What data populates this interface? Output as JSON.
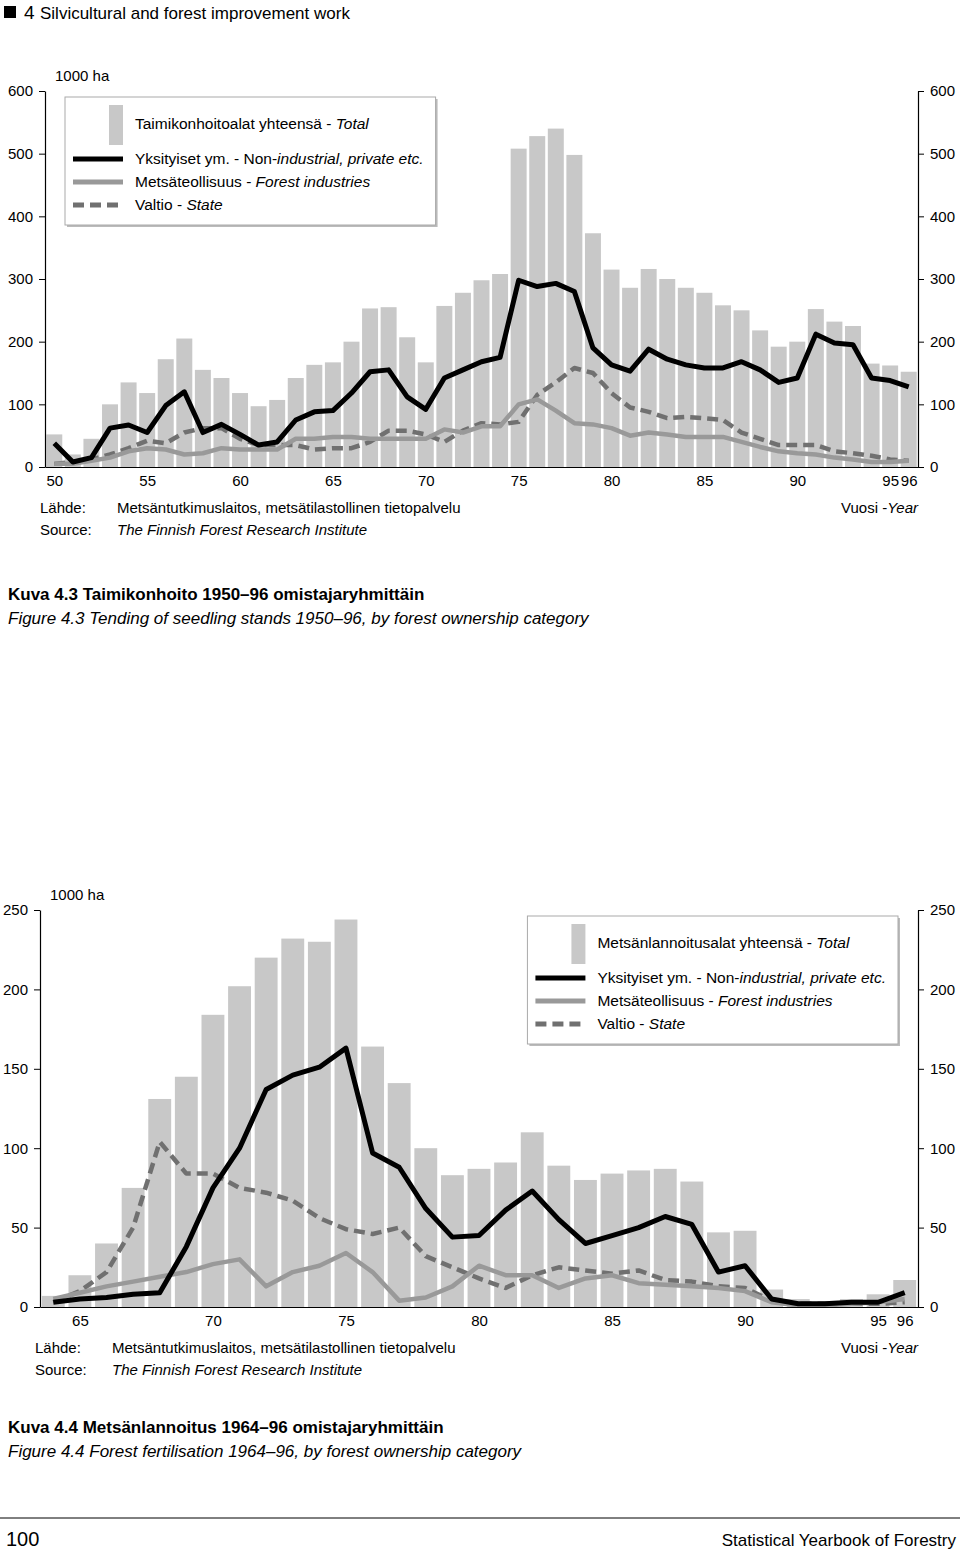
{
  "page": {
    "section_number": "4",
    "header": "Silvicultural and forest improvement work",
    "page_number": 100,
    "footer": "Statistical Yearbook of Forestry"
  },
  "chart_data": [
    {
      "type": "bar",
      "title": "Kuva 4.3 Taimikonhoito 1950–96 omistajaryhmittäin",
      "subtitle": "Figure 4.3 Tending of seedling stands 1950–96, by forest ownership category",
      "y_label": "1000 ha",
      "x_label": "Vuosi -Year",
      "annotations": [
        "Lähde:",
        "Metsäntutkimuslaitos, metsätilastollinen tietopalvelu",
        "Source:",
        "The Finnish Forest Research Institute"
      ],
      "x": [
        50,
        51,
        52,
        53,
        54,
        55,
        56,
        57,
        58,
        59,
        60,
        61,
        62,
        63,
        64,
        65,
        66,
        67,
        68,
        69,
        70,
        71,
        72,
        73,
        74,
        75,
        76,
        77,
        78,
        79,
        80,
        81,
        82,
        83,
        84,
        85,
        86,
        87,
        88,
        89,
        90,
        91,
        92,
        93,
        94,
        95,
        96
      ],
      "series": [
        {
          "name": "Taimikonhoitoalat yhteensä - Total",
          "type": "bar",
          "color": "#c8c8c8",
          "values": [
            52,
            20,
            45,
            100,
            135,
            118,
            172,
            205,
            155,
            142,
            118,
            97,
            107,
            142,
            163,
            167,
            200,
            253,
            255,
            207,
            167,
            257,
            278,
            298,
            308,
            508,
            528,
            540,
            498,
            373,
            315,
            286,
            316,
            300,
            286,
            278,
            258,
            250,
            218,
            192,
            200,
            252,
            232,
            225,
            165,
            162,
            152
          ]
        },
        {
          "name": "Yksityiset ym. - Non-industrial, private etc.",
          "type": "line",
          "line_style": "solid",
          "color": "#000000",
          "values": [
            38,
            8,
            15,
            62,
            67,
            55,
            98,
            120,
            55,
            68,
            52,
            35,
            40,
            75,
            88,
            90,
            118,
            152,
            155,
            112,
            92,
            142,
            155,
            168,
            175,
            298,
            288,
            293,
            280,
            190,
            163,
            153,
            188,
            172,
            163,
            158,
            158,
            168,
            155,
            135,
            142,
            212,
            198,
            195,
            142,
            138,
            128
          ]
        },
        {
          "name": "Metsäteollisuus - Forest industries",
          "type": "line",
          "line_style": "solid",
          "color": "#999999",
          "values": [
            5,
            5,
            10,
            15,
            25,
            30,
            28,
            20,
            22,
            30,
            28,
            28,
            28,
            45,
            45,
            48,
            48,
            45,
            45,
            45,
            45,
            60,
            55,
            65,
            65,
            100,
            108,
            90,
            70,
            68,
            62,
            50,
            55,
            52,
            48,
            48,
            48,
            40,
            32,
            25,
            22,
            20,
            15,
            12,
            8,
            8,
            10
          ]
        },
        {
          "name": "Valtio - State",
          "type": "line",
          "line_style": "dashed",
          "color": "#707070",
          "values": [
            5,
            8,
            12,
            20,
            30,
            42,
            38,
            55,
            62,
            62,
            45,
            35,
            35,
            35,
            28,
            30,
            30,
            40,
            58,
            58,
            52,
            40,
            58,
            70,
            68,
            72,
            115,
            135,
            158,
            150,
            118,
            95,
            88,
            78,
            80,
            78,
            75,
            55,
            45,
            35,
            35,
            35,
            25,
            22,
            18,
            12,
            10
          ]
        }
      ],
      "xlim": [
        49.5,
        96.5
      ],
      "xticks": [
        50,
        55,
        60,
        65,
        70,
        75,
        80,
        85,
        90,
        95,
        96
      ],
      "ylim": [
        0,
        600
      ],
      "yticks": [
        0,
        100,
        200,
        300,
        400,
        500,
        600
      ],
      "grid": false,
      "legend": "upper left"
    },
    {
      "type": "bar",
      "title": "Kuva 4.4 Metsänlannoitus 1964–96 omistajaryhmittäin",
      "subtitle": "Figure 4.4 Forest fertilisation 1964–96, by forest ownership category",
      "y_label": "1000 ha",
      "x_label": "Vuosi -Year",
      "annotations": [
        "Lähde:",
        "Metsäntutkimuslaitos, metsätilastollinen tietopalvelu",
        "Source:",
        "The Finnish Forest Research Institute"
      ],
      "x": [
        64,
        65,
        66,
        67,
        68,
        69,
        70,
        71,
        72,
        73,
        74,
        75,
        76,
        77,
        78,
        79,
        80,
        81,
        82,
        83,
        84,
        85,
        86,
        87,
        88,
        89,
        90,
        91,
        92,
        93,
        94,
        95,
        96
      ],
      "series": [
        {
          "name": "Metsänlannoitusalat yhteensä - Total",
          "type": "bar",
          "color": "#c8c8c8",
          "values": [
            7,
            20,
            40,
            75,
            131,
            145,
            184,
            202,
            220,
            232,
            230,
            244,
            164,
            141,
            100,
            83,
            87,
            91,
            110,
            89,
            80,
            84,
            86,
            87,
            79,
            47,
            48,
            11,
            5,
            3,
            5,
            8,
            17
          ]
        },
        {
          "name": "Yksityiset ym. - Non-industrial, private etc.",
          "type": "line",
          "line_style": "solid",
          "color": "#000000",
          "values": [
            3,
            5,
            6,
            8,
            9,
            38,
            75,
            100,
            137,
            146,
            151,
            163,
            97,
            88,
            62,
            44,
            45,
            61,
            73,
            55,
            40,
            45,
            50,
            57,
            52,
            22,
            26,
            5,
            2,
            2,
            3,
            3,
            9
          ]
        },
        {
          "name": "Metsäteollisuus - Forest industries",
          "type": "line",
          "line_style": "solid",
          "color": "#999999",
          "values": [
            5,
            9,
            13,
            16,
            19,
            22,
            27,
            30,
            13,
            22,
            26,
            34,
            22,
            4,
            6,
            13,
            26,
            20,
            20,
            12,
            18,
            20,
            15,
            14,
            13,
            12,
            10,
            3,
            1,
            1,
            2,
            3,
            5
          ]
        },
        {
          "name": "Valtio - State",
          "type": "line",
          "line_style": "dashed",
          "color": "#707070",
          "values": [
            3,
            10,
            22,
            50,
            104,
            84,
            84,
            75,
            72,
            67,
            56,
            49,
            46,
            50,
            32,
            25,
            18,
            12,
            20,
            25,
            23,
            21,
            23,
            17,
            16,
            13,
            12,
            4,
            2,
            2,
            2,
            2,
            3
          ]
        }
      ],
      "xlim": [
        63.5,
        96.5
      ],
      "xticks": [
        65,
        70,
        75,
        80,
        85,
        90,
        95,
        96
      ],
      "ylim": [
        0,
        250
      ],
      "yticks": [
        0,
        50,
        100,
        150,
        200,
        250
      ],
      "grid": false,
      "legend": "upper right"
    }
  ]
}
